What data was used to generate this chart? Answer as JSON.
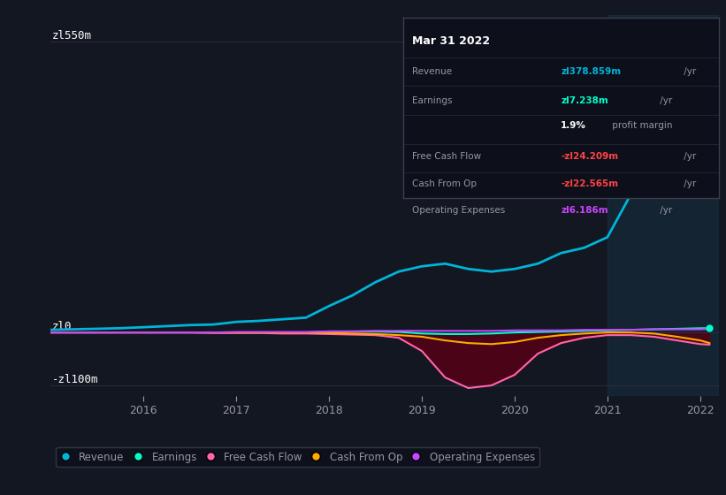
{
  "background_color": "#131722",
  "plot_bg_color": "#131722",
  "ylabel_550": "zl550m",
  "ylabel_0": "zl0",
  "ylabel_neg100": "-zl100m",
  "x_years": [
    2015.0,
    2015.25,
    2015.5,
    2015.75,
    2016.0,
    2016.25,
    2016.5,
    2016.75,
    2017.0,
    2017.25,
    2017.5,
    2017.75,
    2018.0,
    2018.25,
    2018.5,
    2018.75,
    2019.0,
    2019.25,
    2019.5,
    2019.75,
    2020.0,
    2020.25,
    2020.5,
    2020.75,
    2021.0,
    2021.25,
    2021.5,
    2021.75,
    2022.0,
    2022.1
  ],
  "revenue": [
    5,
    6,
    7,
    8,
    10,
    12,
    14,
    15,
    20,
    22,
    25,
    28,
    50,
    70,
    95,
    115,
    125,
    130,
    120,
    115,
    120,
    130,
    150,
    160,
    180,
    260,
    380,
    500,
    540,
    295
  ],
  "earnings": [
    0,
    0,
    0,
    0,
    0,
    0,
    0,
    0,
    0,
    0,
    0,
    0,
    2,
    2,
    2,
    1,
    -2,
    -3,
    -3,
    -2,
    0,
    1,
    2,
    3,
    4,
    5,
    6,
    7,
    8,
    8
  ],
  "free_cash_flow": [
    0,
    0,
    0,
    0,
    0,
    0,
    0,
    -1,
    -1,
    -1,
    -2,
    -2,
    -3,
    -4,
    -5,
    -10,
    -35,
    -85,
    -105,
    -100,
    -80,
    -40,
    -20,
    -10,
    -5,
    -5,
    -8,
    -15,
    -22,
    -23
  ],
  "cash_from_op": [
    0,
    0,
    0,
    0,
    0,
    0,
    0,
    0,
    0,
    0,
    0,
    0,
    -1,
    -2,
    -3,
    -5,
    -8,
    -15,
    -20,
    -22,
    -18,
    -10,
    -5,
    -2,
    0,
    0,
    -2,
    -8,
    -15,
    -20
  ],
  "op_expenses": [
    0,
    0,
    0,
    0,
    0,
    0,
    0,
    0,
    1,
    1,
    1,
    1,
    2,
    2,
    3,
    3,
    3,
    3,
    3,
    3,
    4,
    4,
    4,
    5,
    5,
    5,
    6,
    6,
    6,
    7
  ],
  "revenue_color": "#00b4d8",
  "earnings_color": "#00ffcc",
  "fcf_color": "#ff66aa",
  "cash_from_op_color": "#ffaa00",
  "op_expenses_color": "#cc44ff",
  "highlight_start": 2021.0,
  "highlight_end": 2022.2,
  "ylim": [
    -120,
    600
  ],
  "xlim": [
    2015.0,
    2022.2
  ],
  "grid_color": "#2a2e39",
  "text_color": "#9598a1",
  "legend_labels": [
    "Revenue",
    "Earnings",
    "Free Cash Flow",
    "Cash From Op",
    "Operating Expenses"
  ],
  "legend_colors": [
    "#00b4d8",
    "#00ffcc",
    "#ff66aa",
    "#ffaa00",
    "#cc44ff"
  ],
  "marker_x": 2022.1,
  "marker_revenue": 295,
  "marker_earnings": 8,
  "tooltip": {
    "title": "Mar 31 2022",
    "rows": [
      {
        "label": "Revenue",
        "value": "zl378.859m",
        "suffix": " /yr",
        "vcolor": "#00b4d8"
      },
      {
        "label": "Earnings",
        "value": "zl7.238m",
        "suffix": " /yr",
        "vcolor": "#00ffcc"
      },
      {
        "label": "",
        "value": "1.9%",
        "suffix": " profit margin",
        "vcolor": "white"
      },
      {
        "label": "Free Cash Flow",
        "value": "-zl24.209m",
        "suffix": " /yr",
        "vcolor": "#ff4444"
      },
      {
        "label": "Cash From Op",
        "value": "-zl22.565m",
        "suffix": " /yr",
        "vcolor": "#ff4444"
      },
      {
        "label": "Operating Expenses",
        "value": "zl6.186m",
        "suffix": " /yr",
        "vcolor": "#cc44ff"
      }
    ]
  }
}
